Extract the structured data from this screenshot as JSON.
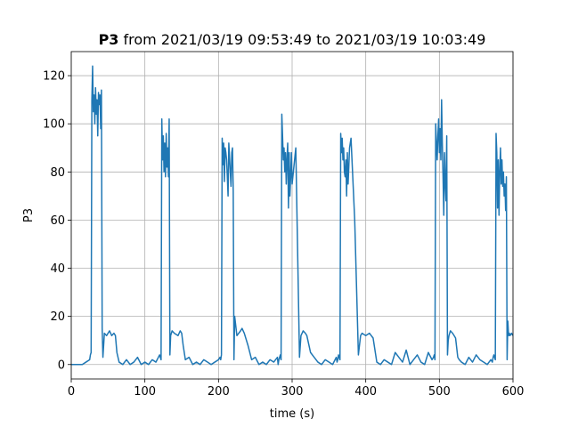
{
  "chart_data": {
    "type": "line",
    "title_bold": "P3",
    "title_rest": " from 2021/03/19 09:53:49 to 2021/03/19 10:03:49",
    "xlabel": "time (s)",
    "ylabel": "P3",
    "xlim": [
      0,
      600
    ],
    "ylim": [
      -6,
      130
    ],
    "xticks": [
      0,
      100,
      200,
      300,
      400,
      500,
      600
    ],
    "yticks": [
      0,
      20,
      40,
      60,
      80,
      100,
      120
    ],
    "grid": true,
    "colors": {
      "series": "#1f77b4"
    },
    "series": [
      {
        "x": [
          0,
          5,
          10,
          15,
          20,
          25,
          26,
          27,
          28,
          29,
          30,
          31,
          32,
          33,
          34,
          35,
          36,
          37,
          38,
          39,
          40,
          41,
          42,
          43,
          45,
          48,
          52,
          55,
          58,
          60,
          62,
          65,
          70,
          75,
          80,
          85,
          90,
          95,
          100,
          105,
          110,
          115,
          120,
          121,
          122,
          123,
          124,
          125,
          126,
          127,
          128,
          129,
          130,
          131,
          132,
          133,
          134,
          135,
          136,
          137,
          140,
          145,
          148,
          150,
          152,
          155,
          160,
          165,
          170,
          175,
          180,
          185,
          190,
          195,
          200,
          202,
          203,
          204,
          205,
          206,
          207,
          208,
          209,
          210,
          211,
          212,
          213,
          214,
          215,
          216,
          217,
          218,
          219,
          220,
          221,
          222,
          225,
          230,
          232,
          235,
          240,
          245,
          250,
          255,
          260,
          265,
          270,
          275,
          280,
          281,
          282,
          283,
          284,
          285,
          286,
          287,
          288,
          289,
          290,
          291,
          292,
          293,
          294,
          295,
          296,
          297,
          298,
          299,
          300,
          305,
          310,
          312,
          315,
          318,
          320,
          325,
          330,
          335,
          340,
          345,
          350,
          355,
          360,
          361,
          362,
          363,
          364,
          365,
          366,
          367,
          368,
          369,
          370,
          371,
          372,
          373,
          374,
          375,
          376,
          377,
          378,
          380,
          385,
          390,
          393,
          395,
          400,
          405,
          410,
          415,
          420,
          425,
          430,
          435,
          440,
          445,
          450,
          455,
          460,
          465,
          470,
          475,
          480,
          485,
          490,
          492,
          493,
          494,
          495,
          496,
          497,
          498,
          499,
          500,
          501,
          502,
          503,
          504,
          505,
          506,
          507,
          508,
          509,
          510,
          511,
          512,
          513,
          515,
          518,
          520,
          522,
          525,
          527,
          530,
          535,
          540,
          545,
          550,
          555,
          560,
          565,
          570,
          572,
          573,
          574,
          575,
          576,
          577,
          578,
          579,
          580,
          581,
          582,
          583,
          584,
          585,
          586,
          587,
          588,
          589,
          590,
          591,
          592,
          593,
          594,
          595,
          596,
          598,
          600
        ],
        "y": [
          0,
          0,
          0,
          0,
          1,
          2,
          4,
          5,
          110,
          124,
          105,
          112,
          100,
          115,
          104,
          110,
          95,
          113,
          108,
          112,
          98,
          114,
          15,
          3,
          13,
          12,
          14,
          12,
          13,
          12,
          5,
          1,
          0,
          2,
          0,
          1,
          3,
          0,
          1,
          0,
          2,
          1,
          4,
          3,
          2,
          102,
          85,
          95,
          80,
          92,
          78,
          96,
          82,
          90,
          78,
          102,
          4,
          12,
          13,
          14,
          13,
          12,
          14,
          13,
          8,
          2,
          3,
          0,
          1,
          0,
          2,
          1,
          0,
          1,
          2,
          3,
          2,
          4,
          94,
          83,
          92,
          76,
          90,
          88,
          85,
          78,
          70,
          92,
          86,
          80,
          74,
          88,
          90,
          72,
          2,
          20,
          12,
          14,
          15,
          13,
          8,
          2,
          3,
          0,
          1,
          0,
          2,
          1,
          3,
          0,
          2,
          3,
          4,
          2,
          104,
          95,
          85,
          90,
          80,
          88,
          75,
          85,
          92,
          65,
          88,
          70,
          78,
          88,
          75,
          90,
          3,
          12,
          14,
          13,
          12,
          5,
          3,
          1,
          0,
          2,
          1,
          0,
          3,
          1,
          2,
          4,
          3,
          2,
          96,
          88,
          94,
          85,
          90,
          80,
          78,
          85,
          70,
          88,
          75,
          82,
          90,
          94,
          60,
          4,
          12,
          13,
          12,
          13,
          11,
          1,
          0,
          2,
          1,
          0,
          5,
          3,
          1,
          6,
          0,
          2,
          4,
          1,
          0,
          5,
          2,
          3,
          4,
          2,
          100,
          92,
          85,
          95,
          102,
          88,
          98,
          85,
          110,
          92,
          78,
          62,
          88,
          75,
          68,
          95,
          4,
          10,
          12,
          14,
          13,
          12,
          11,
          3,
          2,
          1,
          0,
          3,
          1,
          4,
          2,
          1,
          0,
          2,
          1,
          3,
          4,
          3,
          2,
          96,
          88,
          65,
          85,
          62,
          80,
          90,
          75,
          85,
          74,
          80,
          70,
          75,
          64,
          78,
          2,
          18,
          12,
          13,
          12,
          13,
          12
        ]
      }
    ]
  }
}
